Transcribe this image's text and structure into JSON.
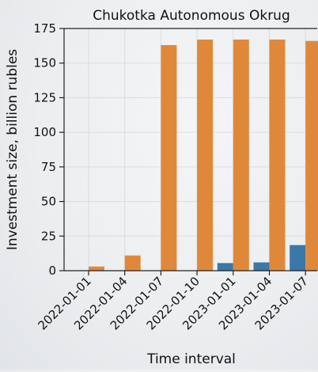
{
  "chart_data": {
    "type": "bar",
    "title": "Chukotka Autonomous Okrug",
    "xlabel": "Time interval",
    "ylabel": "Investment size, billion rubles",
    "categories": [
      "2022-01-01",
      "2022-01-04",
      "2022-01-07",
      "2022-01-10",
      "2023-01-01",
      "2023-01-04",
      "2023-01-07"
    ],
    "series": [
      {
        "values": [
          0,
          0,
          0,
          0,
          5.5,
          6,
          18.5
        ],
        "color": "#3a78a8"
      },
      {
        "values": [
          3,
          11,
          163,
          167,
          167,
          167,
          166
        ],
        "color": "#e0883a"
      }
    ],
    "ylim": [
      0,
      175
    ],
    "yticks": [
      0,
      25,
      50,
      75,
      100,
      125,
      150,
      175
    ],
    "grid": true,
    "legend": "none"
  }
}
